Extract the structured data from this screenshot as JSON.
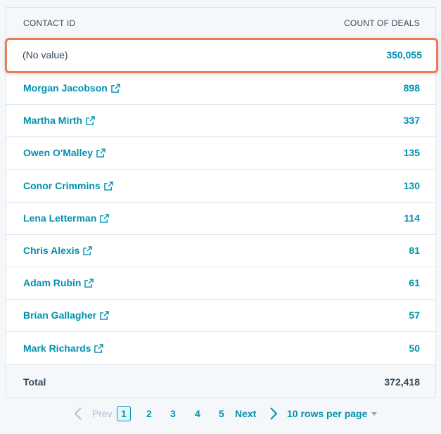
{
  "table": {
    "col_contact": "CONTACT ID",
    "col_count": "COUNT OF DEALS",
    "highlight": {
      "label": "(No value)",
      "count": "350,055"
    },
    "rows": [
      {
        "name": "Morgan Jacobson",
        "count": "898"
      },
      {
        "name": "Martha Mirth",
        "count": "337"
      },
      {
        "name": "Owen O'Malley",
        "count": "135"
      },
      {
        "name": "Conor Crimmins",
        "count": "130"
      },
      {
        "name": "Lena Letterman",
        "count": "114"
      },
      {
        "name": "Chris Alexis",
        "count": "81"
      },
      {
        "name": "Adam Rubin",
        "count": "61"
      },
      {
        "name": "Brian Gallagher",
        "count": "57"
      },
      {
        "name": "Mark Richards",
        "count": "50"
      }
    ],
    "total_label": "Total",
    "total_value": "372,418"
  },
  "pagination": {
    "prev": "Prev",
    "pages": [
      "1",
      "2",
      "3",
      "4",
      "5"
    ],
    "current": "1",
    "next": "Next",
    "per_page": "10 rows per page"
  },
  "colors": {
    "link": "#0091ae",
    "highlight_border": "#f0795a",
    "text": "#33475b"
  },
  "icons": {
    "external_link": "external-link-icon",
    "chevron_left": "chevron-left-icon",
    "chevron_right": "chevron-right-icon",
    "caret_down": "caret-down-icon"
  }
}
